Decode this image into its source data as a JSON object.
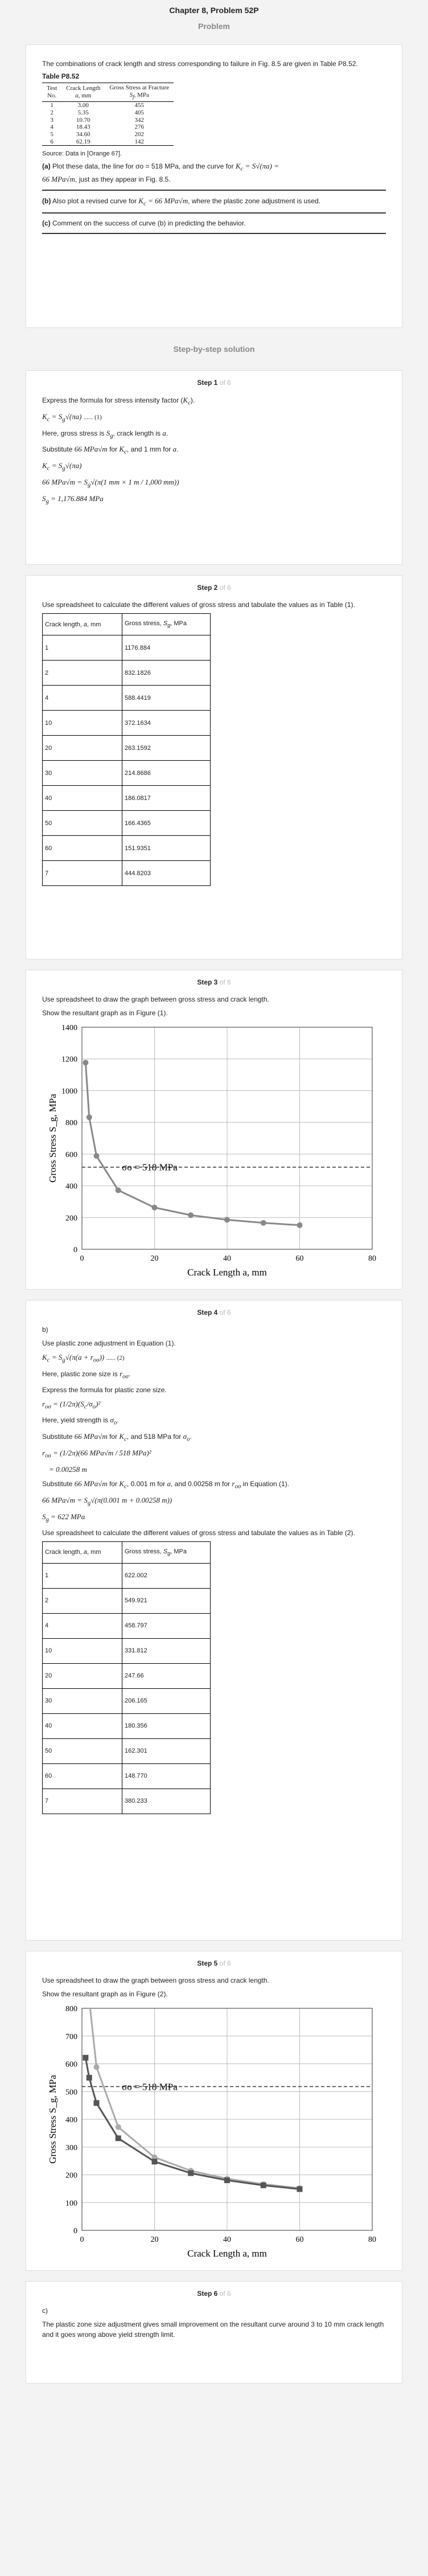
{
  "header": {
    "chapter": "Chapter 8, Problem 52P",
    "problem_label": "Problem"
  },
  "problem": {
    "intro": "The combinations of crack length and stress corresponding to failure in Fig. 8.5 are given in Table P8.52.",
    "table_title": "Table P8.52",
    "columns": [
      "Test No.",
      "Crack Length a, mm",
      "Gross Stress at Fracture S_f, MPa"
    ],
    "rows": [
      [
        "1",
        "3.00",
        "455"
      ],
      [
        "2",
        "5.35",
        "405"
      ],
      [
        "3",
        "10.70",
        "342"
      ],
      [
        "4",
        "18.43",
        "276"
      ],
      [
        "5",
        "34.60",
        "202"
      ],
      [
        "6",
        "62.19",
        "142"
      ]
    ],
    "source": "Source: Data in [Orange 67].",
    "part_a_label": "(a)",
    "part_a": "Plot these data, the line for σo = 518 MPa, and the curve for K_c = S√(πa) = 66 MPa√m, just as they appear in Fig. 8.5.",
    "part_b_label": "(b)",
    "part_b": "Also plot a revised curve for K_c = 66 MPa√m, where the plastic zone adjustment is used.",
    "part_c_label": "(c)",
    "part_c": "Comment on the success of curve (b) in predicting the behavior."
  },
  "solution_title": "Step-by-step solution",
  "step1": {
    "step": "Step 1",
    "of": "of 6",
    "l1": "Express the formula for stress intensity factor (K_c).",
    "eq1": "K_c = S_g√(πa) ...... (1)",
    "l2": "Here, gross stress is S_g, crack length is a.",
    "l3": "Substitute 66 MPa√m for K_c and 1 mm for a.",
    "eq2": "K_c = S_g√(πa)",
    "eq3": "66 MPa√m = S_g √(π(1 mm × 1 m / 1,000 mm))",
    "eq4": "S_g = 1,176.884 MPa"
  },
  "step2": {
    "step": "Step 2",
    "of": "of 6",
    "text": "Use spreadsheet to calculate the different values of gross stress and tabulate the values as in Table (1).",
    "headers": [
      "Crack length, a, mm",
      "Gross stress, S_g, MPa"
    ],
    "rows": [
      [
        "1",
        "1176.884"
      ],
      [
        "2",
        "832.1826"
      ],
      [
        "4",
        "588.4419"
      ],
      [
        "10",
        "372.1634"
      ],
      [
        "20",
        "263.1592"
      ],
      [
        "30",
        "214.8686"
      ],
      [
        "40",
        "186.0817"
      ],
      [
        "50",
        "166.4365"
      ],
      [
        "60",
        "151.9351"
      ],
      [
        "7",
        "444.8203"
      ]
    ]
  },
  "step3": {
    "step": "Step 3",
    "of": "of 6",
    "l1": "Use spreadsheet to draw the graph between gross stress and crack length.",
    "l2": "Show the resultant graph as in Figure (1)."
  },
  "chart_data": [
    {
      "type": "line",
      "title": "",
      "xlabel": "Crack Length a, mm",
      "ylabel": "Gross Stress S_g, MPa",
      "xlim": [
        0,
        80
      ],
      "ylim": [
        0,
        1400
      ],
      "xticks": [
        0,
        20,
        40,
        60,
        80
      ],
      "yticks": [
        0,
        200,
        400,
        600,
        800,
        1000,
        1200,
        1400
      ],
      "grid": true,
      "annotation": "σo = 518 MPa",
      "series": [
        {
          "x": [
            1,
            2,
            4,
            10,
            20,
            30,
            40,
            50,
            60
          ],
          "y": [
            1176.884,
            832.1826,
            588.4419,
            372.1634,
            263.1592,
            214.8686,
            186.0817,
            166.4365,
            151.9351
          ],
          "color": "#888888"
        },
        {
          "x": [
            0,
            80
          ],
          "y": [
            518,
            518
          ],
          "color": "#333333"
        }
      ]
    },
    {
      "type": "line",
      "title": "",
      "xlabel": "Crack Length a, mm",
      "ylabel": "Gross Stress S_g, MPa",
      "xlim": [
        0,
        80
      ],
      "ylim": [
        0,
        800
      ],
      "xticks": [
        0,
        20,
        40,
        60,
        80
      ],
      "yticks": [
        0,
        100,
        200,
        300,
        400,
        500,
        600,
        700,
        800
      ],
      "grid": true,
      "annotation": "σo = 518 MPa",
      "series": [
        {
          "x": [
            1,
            2,
            4,
            10,
            20,
            30,
            40,
            50,
            60
          ],
          "y": [
            1176.884,
            832.1826,
            588.4419,
            372.1634,
            263.1592,
            214.8686,
            186.0817,
            166.4365,
            151.9351
          ],
          "color": "#aaaaaa"
        },
        {
          "x": [
            1,
            2,
            4,
            10,
            20,
            30,
            40,
            50,
            60
          ],
          "y": [
            622.002,
            549.921,
            458.797,
            331.812,
            247.66,
            206.165,
            180.356,
            162.301,
            148.77
          ],
          "color": "#555555"
        },
        {
          "x": [
            0,
            80
          ],
          "y": [
            518,
            518
          ],
          "color": "#333333"
        }
      ]
    }
  ],
  "step4": {
    "step": "Step 4",
    "of": "of 6",
    "b": "b)",
    "l1": "Use plastic zone adjustment in Equation (1).",
    "eq1": "K_c = S_g√(π(a + r_oσ)) ...... (2)",
    "l2": "Here, plastic zone size is r_oσ.",
    "l3": "Express the formula for plastic zone size.",
    "eq2": "r_oσ = (1/2π)(S_c/σ_o)²",
    "l4": "Here, yield strength is σ_o.",
    "l5": "Substitute 66 MPa√m for K_c and 518 MPa for σ_o.",
    "eq3": "r_oσ = (1/2π)(66 MPa√m / 518 MPa)²",
    "eq4": "= 0.00258 m",
    "l6": "Substitute 66 MPa√m for K_c, 0.001 m for a, and 0.00258 m for r_oσ in Equation (1).",
    "eq5": "66 MPa√m = S_g√(π(0.001 m + 0.00258 m))",
    "eq6": "S_g = 622 MPa",
    "l7": "Use spreadsheet to calculate the different values of gross stress and tabulate the values as in Table (2).",
    "headers": [
      "Crack length, a, mm",
      "Gross stress, S_g, MPa"
    ],
    "rows": [
      [
        "1",
        "622.002"
      ],
      [
        "2",
        "549.921"
      ],
      [
        "4",
        "458.797"
      ],
      [
        "10",
        "331.812"
      ],
      [
        "20",
        "247.66"
      ],
      [
        "30",
        "206.165"
      ],
      [
        "40",
        "180.356"
      ],
      [
        "50",
        "162.301"
      ],
      [
        "60",
        "148.770"
      ],
      [
        "7",
        "380.233"
      ]
    ]
  },
  "step5": {
    "step": "Step 5",
    "of": "of 6",
    "l1": "Use spreadsheet to draw the graph between gross stress and crack length.",
    "l2": "Show the resultant graph as in Figure (2)."
  },
  "step6": {
    "step": "Step 6",
    "of": "of 6",
    "c": "c)",
    "text": "The plastic zone size adjustment gives small improvement on the resultant curve around 3 to 10 mm crack length and it goes wrong above yield strength limit."
  }
}
